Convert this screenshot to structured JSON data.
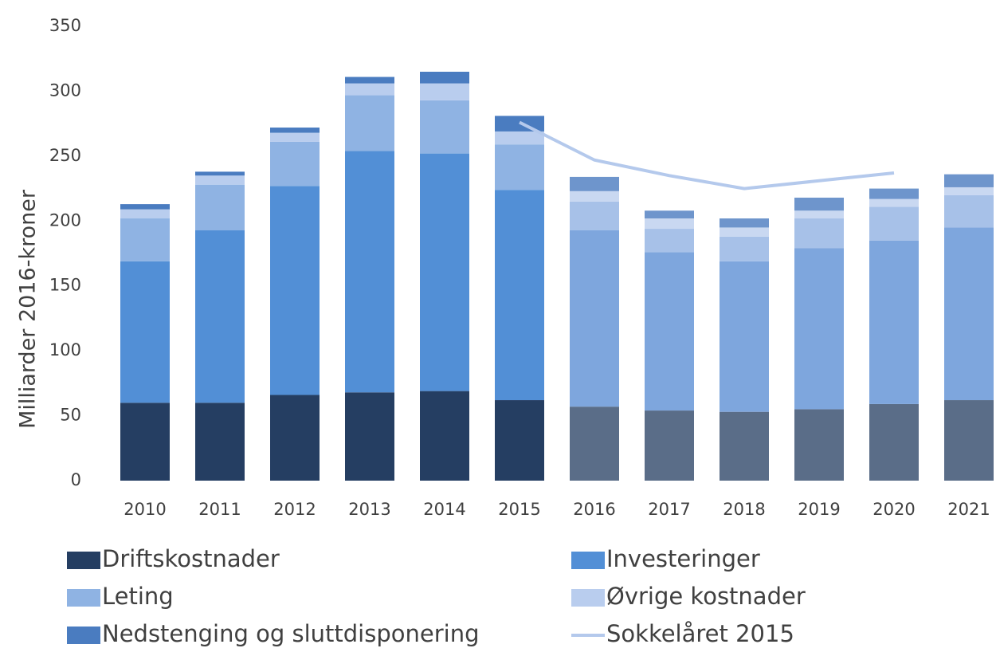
{
  "chart_data": {
    "type": "bar",
    "stacked": true,
    "y_label": "Milliarder 2016-kroner",
    "categories": [
      "2010",
      "2011",
      "2012",
      "2013",
      "2014",
      "2015",
      "2016",
      "2017",
      "2018",
      "2019",
      "2020",
      "2021"
    ],
    "ylim": [
      0,
      350
    ],
    "yticks": [
      0,
      50,
      100,
      150,
      200,
      250,
      300,
      350
    ],
    "grid": false,
    "series": [
      {
        "name": "Driftskostnader",
        "values": [
          60,
          60,
          66,
          68,
          69,
          62,
          57,
          54,
          53,
          55,
          59,
          62
        ],
        "colors": [
          "#253e62",
          "#253e62",
          "#253e62",
          "#253e62",
          "#253e62",
          "#253e62",
          "#5a6d88",
          "#5a6d88",
          "#5a6d88",
          "#5a6d88",
          "#5a6d88",
          "#5a6d88"
        ]
      },
      {
        "name": "Investeringer",
        "values": [
          109,
          133,
          161,
          186,
          183,
          162,
          136,
          122,
          116,
          124,
          126,
          133
        ],
        "colors": [
          "#528fd6",
          "#528fd6",
          "#528fd6",
          "#528fd6",
          "#528fd6",
          "#528fd6",
          "#7ea6dd",
          "#7ea6dd",
          "#7ea6dd",
          "#7ea6dd",
          "#7ea6dd",
          "#7ea6dd"
        ]
      },
      {
        "name": "Leting",
        "values": [
          33,
          35,
          34,
          43,
          41,
          35,
          22,
          18,
          19,
          23,
          26,
          25
        ],
        "colors": [
          "#8fb3e3",
          "#8fb3e3",
          "#8fb3e3",
          "#8fb3e3",
          "#8fb3e3",
          "#8fb3e3",
          "#a7c1e8",
          "#a7c1e8",
          "#a7c1e8",
          "#a7c1e8",
          "#a7c1e8",
          "#a7c1e8"
        ]
      },
      {
        "name": "Øvrige kostnader",
        "values": [
          7,
          7,
          7,
          9,
          13,
          10,
          8,
          8,
          7,
          6,
          6,
          6
        ],
        "colors": [
          "#b9cdee",
          "#b9cdee",
          "#b9cdee",
          "#b9cdee",
          "#b9cdee",
          "#b9cdee",
          "#c9d8f1",
          "#c9d8f1",
          "#c9d8f1",
          "#c9d8f1",
          "#c9d8f1",
          "#c9d8f1"
        ]
      },
      {
        "name": "Nedstenging og sluttdisponering",
        "values": [
          4,
          3,
          4,
          5,
          9,
          12,
          11,
          6,
          7,
          10,
          8,
          10
        ],
        "colors": [
          "#4a7cc0",
          "#4a7cc0",
          "#4a7cc0",
          "#4a7cc0",
          "#4a7cc0",
          "#4a7cc0",
          "#6e95cc",
          "#6e95cc",
          "#6e95cc",
          "#6e95cc",
          "#6e95cc",
          "#6e95cc"
        ]
      },
      {
        "name": "Sokkelåret 2015",
        "type": "line",
        "color": "#b4c9ec",
        "values": [
          null,
          null,
          null,
          null,
          null,
          276,
          247,
          235,
          225,
          231,
          237,
          null
        ]
      }
    ]
  }
}
